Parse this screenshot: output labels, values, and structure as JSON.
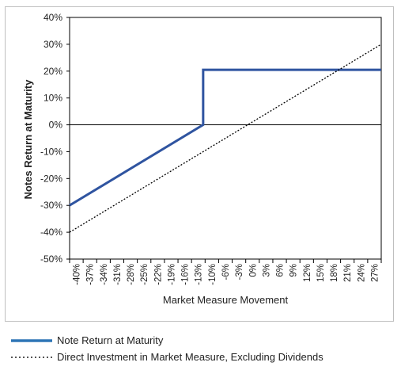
{
  "chart_data": {
    "type": "line",
    "title": "",
    "xlabel": "Market Measure Movement",
    "ylabel": "Notes Return at Maturity",
    "x_tick_labels": [
      "-40%",
      "-37%",
      "-34%",
      "-31%",
      "-28%",
      "-25%",
      "-22%",
      "-19%",
      "-16%",
      "-13%",
      "-10%",
      "-6%",
      "-3%",
      "0%",
      "3%",
      "6%",
      "9%",
      "12%",
      "15%",
      "18%",
      "21%",
      "24%",
      "27%"
    ],
    "y_tick_labels": [
      "40%",
      "30%",
      "20%",
      "10%",
      "0%",
      "-10%",
      "-20%",
      "-30%",
      "-40%",
      "-50%"
    ],
    "xlim": [
      -40,
      30
    ],
    "ylim": [
      -50,
      40
    ],
    "zero_line": true,
    "grid": false,
    "legend_position": "bottom",
    "series": [
      {
        "name": "Note Return at Maturity",
        "color": "#2f54a0",
        "style": "solid",
        "points": [
          [
            -40,
            -30
          ],
          [
            -10,
            0
          ],
          [
            -10,
            20.5
          ],
          [
            30,
            20.5
          ]
        ]
      },
      {
        "name": "Direct Investment in Market Measure, Excluding Dividends",
        "color": "#000000",
        "style": "dotted",
        "points": [
          [
            -40,
            -40
          ],
          [
            30,
            30
          ]
        ]
      }
    ]
  }
}
